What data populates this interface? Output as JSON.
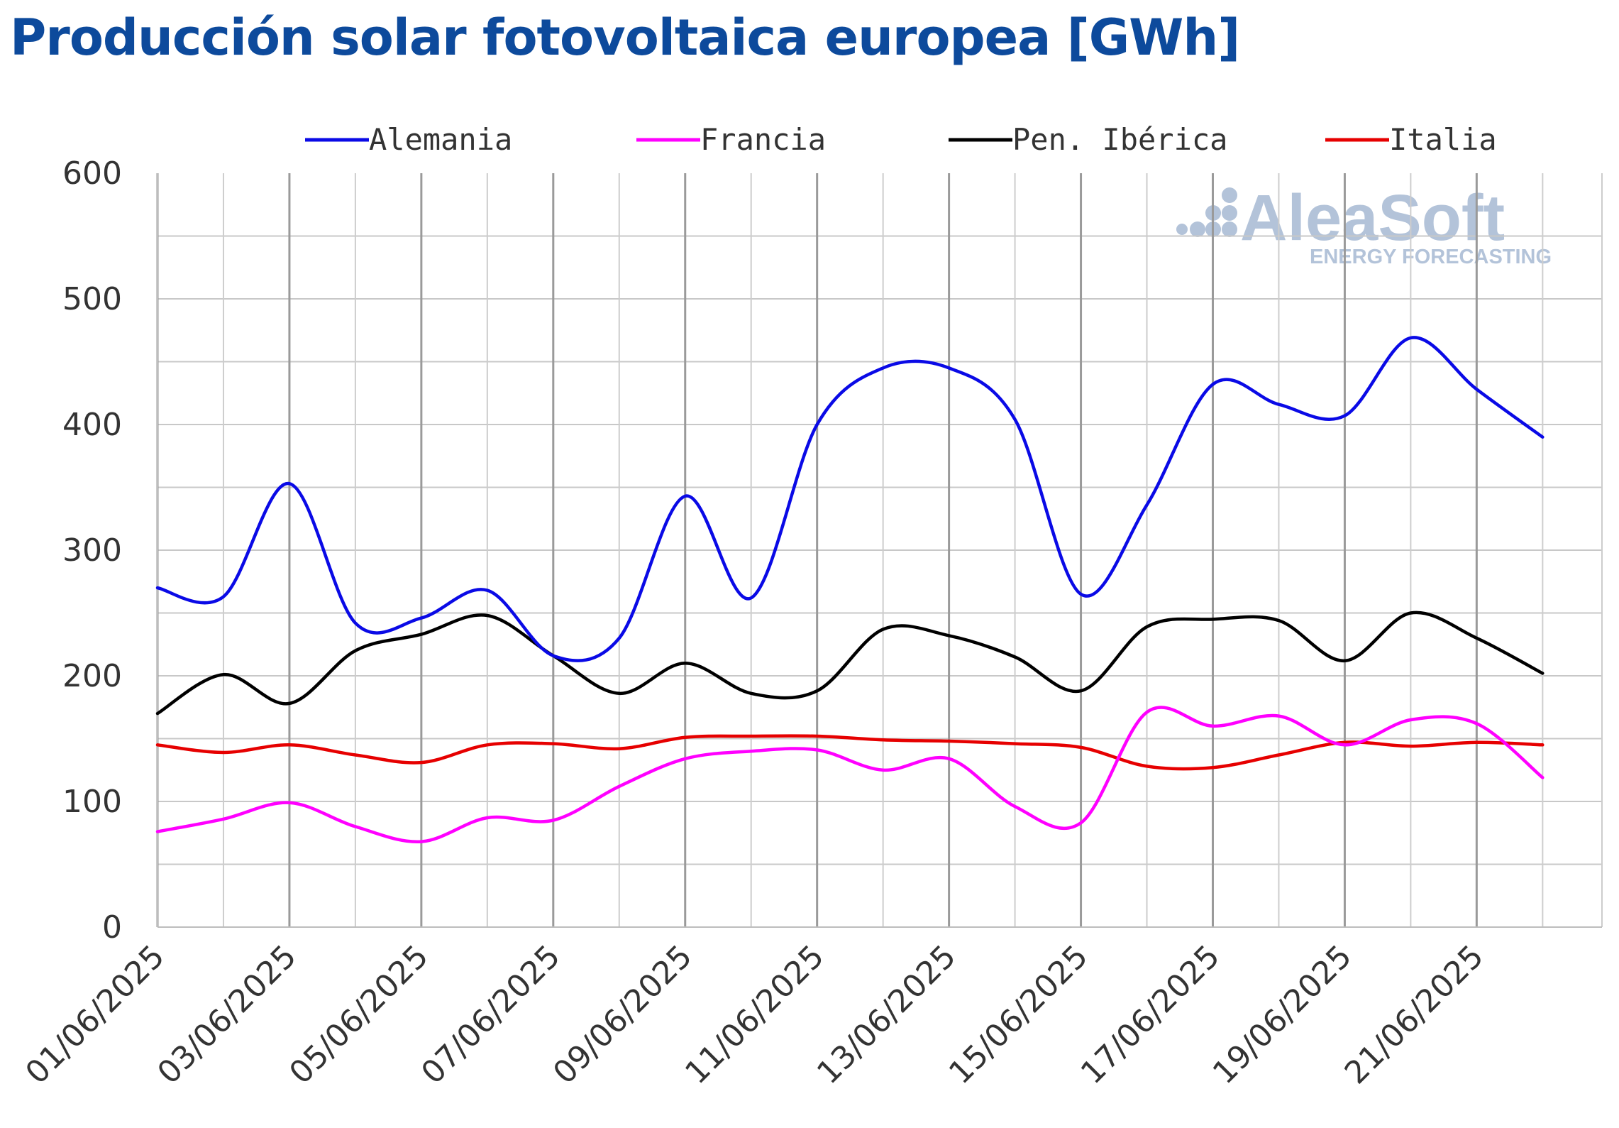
{
  "title": "Producción solar fotovoltaica europea [GWh]",
  "watermark": {
    "brand": "AleaSoft",
    "tagline": "ENERGY FORECASTING",
    "color": "#b3c3d9"
  },
  "chart_data": {
    "type": "line",
    "title": "Producción solar fotovoltaica europea [GWh]",
    "xlabel": "",
    "ylabel": "",
    "ylim": [
      0,
      600
    ],
    "yticks": [
      0,
      100,
      200,
      300,
      400,
      500,
      600
    ],
    "grid": true,
    "legend_position": "top",
    "x": [
      "01/06/2025",
      "02/06/2025",
      "03/06/2025",
      "04/06/2025",
      "05/06/2025",
      "06/06/2025",
      "07/06/2025",
      "08/06/2025",
      "09/06/2025",
      "10/06/2025",
      "11/06/2025",
      "12/06/2025",
      "13/06/2025",
      "14/06/2025",
      "15/06/2025",
      "16/06/2025",
      "17/06/2025",
      "18/06/2025",
      "19/06/2025",
      "20/06/2025",
      "21/06/2025",
      "22/06/2025"
    ],
    "xticklabels": [
      "01/06/2025",
      "03/06/2025",
      "05/06/2025",
      "07/06/2025",
      "09/06/2025",
      "11/06/2025",
      "13/06/2025",
      "15/06/2025",
      "17/06/2025",
      "19/06/2025",
      "21/06/2025"
    ],
    "series": [
      {
        "name": "Alemania",
        "color": "#0a0ae6",
        "values": [
          270,
          263,
          353,
          242,
          246,
          268,
          216,
          230,
          343,
          262,
          400,
          445,
          445,
          404,
          265,
          336,
          432,
          416,
          407,
          469,
          428,
          390
        ]
      },
      {
        "name": "Francia",
        "color": "#ff00ff",
        "values": [
          76,
          86,
          99,
          80,
          68,
          87,
          85,
          112,
          134,
          140,
          141,
          125,
          134,
          96,
          83,
          171,
          160,
          168,
          145,
          165,
          162,
          119
        ]
      },
      {
        "name": "Pen. Ibérica",
        "color": "#000000",
        "values": [
          170,
          201,
          178,
          220,
          233,
          248,
          216,
          186,
          210,
          186,
          188,
          237,
          232,
          215,
          188,
          239,
          245,
          244,
          212,
          250,
          230,
          202
        ]
      },
      {
        "name": "Italia",
        "color": "#e60000",
        "values": [
          145,
          139,
          145,
          137,
          131,
          145,
          146,
          142,
          151,
          152,
          152,
          149,
          148,
          146,
          143,
          128,
          127,
          137,
          147,
          144,
          147,
          145
        ]
      }
    ]
  }
}
